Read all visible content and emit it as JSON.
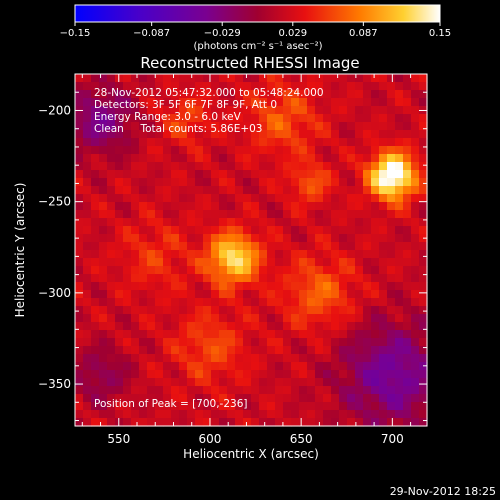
{
  "chart_data": {
    "type": "heatmap",
    "title": "Reconstructed RHESSI Image",
    "xlabel": "Heliocentric X (arcsec)",
    "ylabel": "Heliocentric Y (arcsec)",
    "xlim": [
      526,
      719
    ],
    "ylim": [
      -373,
      -180
    ],
    "xticks": [
      550,
      600,
      650,
      700
    ],
    "yticks": [
      -200,
      -250,
      -300,
      -350
    ],
    "xtick_labels": [
      "550",
      "600",
      "650",
      "700"
    ],
    "ytick_labels": [
      "−200",
      "−250",
      "−300",
      "−350"
    ],
    "colorbar": {
      "min": -0.15,
      "max": 0.15,
      "ticks": [
        -0.15,
        -0.087,
        -0.029,
        0.029,
        0.087,
        0.15
      ],
      "tick_labels": [
        "−0.15",
        "−0.087",
        "−0.029",
        "0.029",
        "0.087",
        "0.15"
      ],
      "unit_label": "(photons cm⁻² s⁻¹ asec⁻²)"
    },
    "annotations": {
      "time_range": "28-Nov-2012 05:47:32.000 to 05:48:24.000",
      "detectors": "Detectors: 3F 5F 6F 7F 8F 9F, Att 0",
      "energy": "Energy Range: 3.0 - 6.0 keV",
      "clean": "Clean     Total counts: 5.86E+03",
      "peak": "Position of Peak = [700,-236]"
    },
    "sources": [
      {
        "x": 700,
        "y": -236,
        "value": 0.15,
        "sigma": 9
      },
      {
        "x": 613,
        "y": -281,
        "value": 0.11,
        "sigma": 10
      },
      {
        "x": 640,
        "y": -205,
        "value": 0.045,
        "sigma": 14
      },
      {
        "x": 587,
        "y": -205,
        "value": 0.035,
        "sigma": 10
      },
      {
        "x": 655,
        "y": -240,
        "value": 0.045,
        "sigma": 8
      },
      {
        "x": 600,
        "y": -330,
        "value": 0.04,
        "sigma": 14
      },
      {
        "x": 660,
        "y": -300,
        "value": 0.05,
        "sigma": 14
      },
      {
        "x": 570,
        "y": -280,
        "value": 0.03,
        "sigma": 14
      }
    ],
    "negative_regions": [
      {
        "x": 540,
        "y": -205,
        "value": -0.06,
        "sigma": 13
      },
      {
        "x": 700,
        "y": -345,
        "value": -0.07,
        "sigma": 20
      },
      {
        "x": 540,
        "y": -345,
        "value": -0.04,
        "sigma": 11
      }
    ],
    "grid": false
  },
  "footer": {
    "date": "29-Nov-2012 18:25"
  }
}
